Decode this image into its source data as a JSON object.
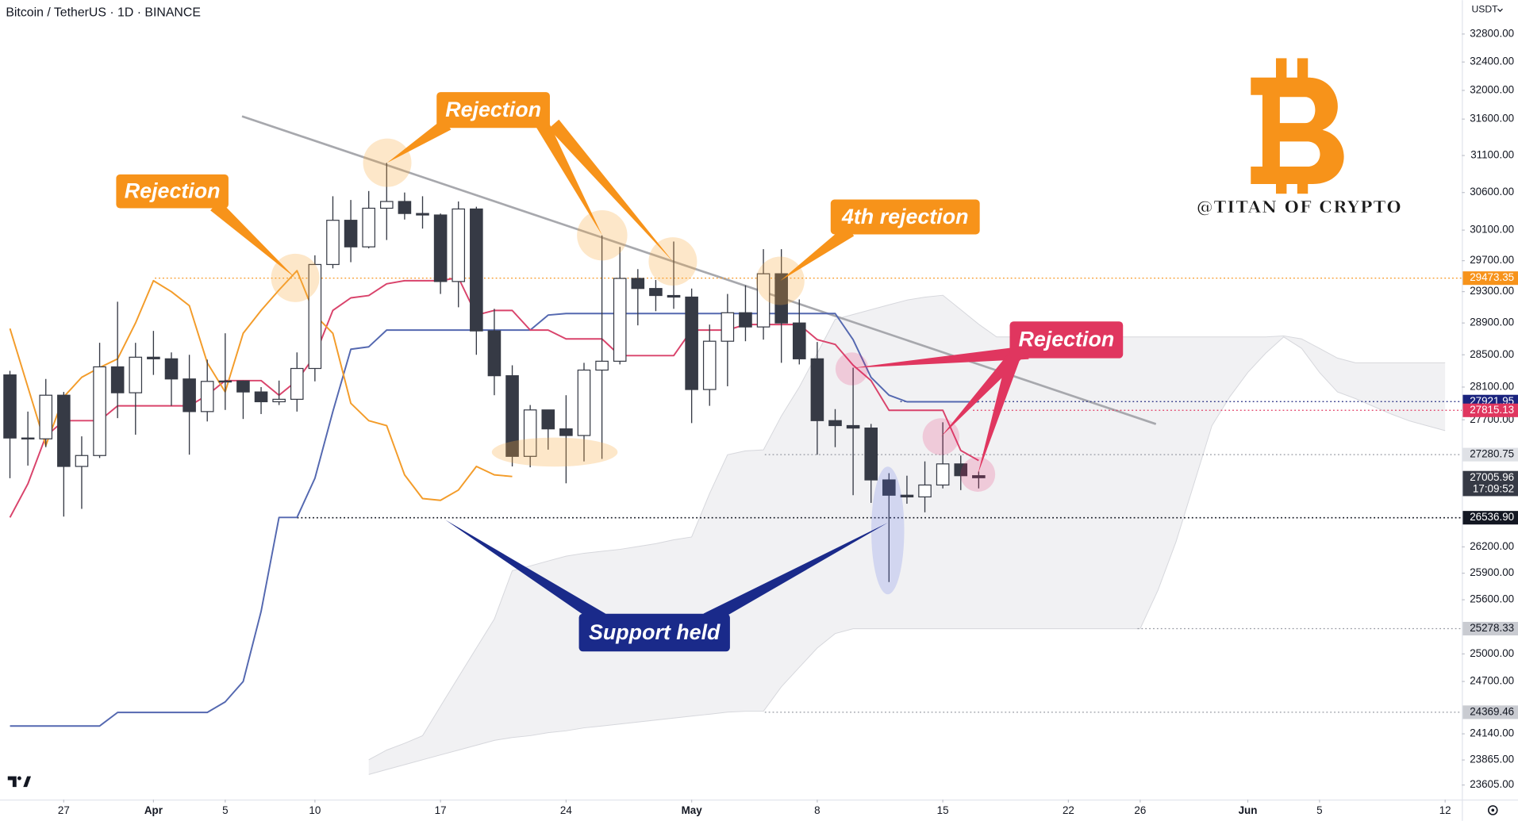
{
  "chart_data": {
    "type": "candlestick",
    "title": "Bitcoin / TetherUS · 1D · BINANCE",
    "currency": "USDT",
    "watermark": "@TITAN OF CRYPTO",
    "log_scale": true,
    "ylim": [
      23455,
      33290
    ],
    "yticks": [
      {
        "value": 32800,
        "label": "32800.00"
      },
      {
        "value": 32400,
        "label": "32400.00"
      },
      {
        "value": 32000,
        "label": "32000.00"
      },
      {
        "value": 31600,
        "label": "31600.00"
      },
      {
        "value": 31100,
        "label": "31100.00"
      },
      {
        "value": 30600,
        "label": "30600.00"
      },
      {
        "value": 30100,
        "label": "30100.00"
      },
      {
        "value": 29700,
        "label": "29700.00"
      },
      {
        "value": 29300,
        "label": "29300.00"
      },
      {
        "value": 28900,
        "label": "28900.00"
      },
      {
        "value": 28500,
        "label": "28500.00"
      },
      {
        "value": 28100,
        "label": "28100.00"
      },
      {
        "value": 27700,
        "label": "27700.00"
      },
      {
        "value": 26200,
        "label": "26200.00"
      },
      {
        "value": 25900,
        "label": "25900.00"
      },
      {
        "value": 25600,
        "label": "25600.00"
      },
      {
        "value": 25000,
        "label": "25000.00"
      },
      {
        "value": 24700,
        "label": "24700.00"
      },
      {
        "value": 24140,
        "label": "24140.00"
      },
      {
        "value": 23865,
        "label": "23865.00"
      },
      {
        "value": 23605,
        "label": "23605.00"
      }
    ],
    "categories": [
      "Mar 24",
      "Mar 25",
      "Mar 26",
      "Mar 27",
      "Mar 28",
      "Mar 29",
      "Mar 30",
      "Mar 31",
      "Apr 1",
      "Apr 2",
      "Apr 3",
      "Apr 4",
      "Apr 5",
      "Apr 6",
      "Apr 7",
      "Apr 8",
      "Apr 9",
      "Apr 10",
      "Apr 11",
      "Apr 12",
      "Apr 13",
      "Apr 14",
      "Apr 15",
      "Apr 16",
      "Apr 17",
      "Apr 18",
      "Apr 19",
      "Apr 20",
      "Apr 21",
      "Apr 22",
      "Apr 23",
      "Apr 24",
      "Apr 25",
      "Apr 26",
      "Apr 27",
      "Apr 28",
      "Apr 29",
      "Apr 30",
      "May 1",
      "May 2",
      "May 3",
      "May 4",
      "May 5",
      "May 6",
      "May 7",
      "May 8",
      "May 9",
      "May 10",
      "May 11",
      "May 12",
      "May 13",
      "May 14",
      "May 15",
      "May 16",
      "May 17",
      "May 18",
      "May 19",
      "May 20",
      "May 21",
      "May 22",
      "May 23",
      "May 24",
      "May 25",
      "May 26",
      "May 27",
      "May 28",
      "May 29",
      "May 30",
      "May 31",
      "Jun 1",
      "Jun 2",
      "Jun 3",
      "Jun 4",
      "Jun 5",
      "Jun 6",
      "Jun 7",
      "Jun 8",
      "Jun 9",
      "Jun 10",
      "Jun 11",
      "Jun 12"
    ],
    "xticks": [
      {
        "value": "Mar 27",
        "label": "27"
      },
      {
        "value": "Apr 1",
        "label": "Apr"
      },
      {
        "value": "Apr 5",
        "label": "5"
      },
      {
        "value": "Apr 10",
        "label": "10"
      },
      {
        "value": "Apr 17",
        "label": "17"
      },
      {
        "value": "Apr 24",
        "label": "24"
      },
      {
        "value": "May 1",
        "label": "May"
      },
      {
        "value": "May 8",
        "label": "8"
      },
      {
        "value": "May 15",
        "label": "15"
      },
      {
        "value": "May 22",
        "label": "22"
      },
      {
        "value": "May 26",
        "label": "26"
      },
      {
        "value": "Jun 1",
        "label": "Jun"
      },
      {
        "value": "Jun 5",
        "label": "5"
      },
      {
        "value": "Jun 12",
        "label": "12"
      }
    ],
    "up_color": "#ffffff",
    "down_color": "#363a45",
    "open": [
      28250,
      27480,
      27470,
      28000,
      27140,
      27270,
      28350,
      28030,
      28470,
      28450,
      28200,
      27800,
      28170,
      28175,
      28040,
      27920,
      27950,
      28330,
      29650,
      30230,
      29880,
      30390,
      30480,
      30320,
      30300,
      29430,
      30380,
      28800,
      28240,
      27260,
      27820,
      27590,
      27510,
      28310,
      28420,
      29470,
      29340,
      29250,
      29230,
      28070,
      28670,
      29030,
      28850,
      29530,
      28900,
      28450,
      27690,
      27630,
      27600,
      26980,
      26800,
      26780,
      26920,
      27170,
      27030,
      null,
      null,
      null,
      null,
      null,
      null,
      null,
      null,
      null,
      null,
      null,
      null,
      null,
      null,
      null,
      null,
      null,
      null,
      null,
      null,
      null,
      null,
      null,
      null,
      null,
      null
    ],
    "high": [
      28300,
      27800,
      28200,
      28040,
      27500,
      28650,
      29170,
      28650,
      28800,
      28530,
      28500,
      28440,
      28770,
      28180,
      28100,
      28180,
      28530,
      29770,
      30550,
      30500,
      30620,
      31000,
      30600,
      30550,
      30320,
      30480,
      30410,
      29080,
      28370,
      27880,
      27820,
      28000,
      28400,
      30030,
      29880,
      29590,
      29450,
      29950,
      29340,
      28880,
      29270,
      29380,
      29850,
      29850,
      29200,
      28660,
      27830,
      28340,
      27650,
      27060,
      27030,
      27200,
      27670,
      27270,
      27080,
      null,
      null,
      null,
      null,
      null,
      null,
      null,
      null,
      null,
      null,
      null,
      null,
      null,
      null,
      null,
      null,
      null,
      null,
      null,
      null,
      null,
      null,
      null,
      null,
      null,
      null
    ],
    "low": [
      27000,
      27150,
      27370,
      26550,
      26640,
      27240,
      27720,
      27520,
      28250,
      27870,
      27280,
      27680,
      27820,
      27710,
      27770,
      27880,
      27800,
      28170,
      29600,
      29680,
      29860,
      29970,
      30240,
      30120,
      29270,
      29100,
      28500,
      28000,
      27140,
      27130,
      27340,
      26940,
      27200,
      27230,
      28380,
      28870,
      29050,
      29080,
      27660,
      27870,
      28110,
      28670,
      28690,
      28400,
      28380,
      27280,
      27370,
      26800,
      26710,
      25800,
      26700,
      26600,
      26880,
      26860,
      26880,
      null,
      null,
      null,
      null,
      null,
      null,
      null,
      null,
      null,
      null,
      null,
      null,
      null,
      null,
      null,
      null,
      null,
      null,
      null,
      null,
      null,
      null,
      null,
      null,
      null,
      null
    ],
    "close": [
      27480,
      27470,
      28000,
      27140,
      27270,
      28350,
      28030,
      28470,
      28450,
      28200,
      27800,
      28170,
      28175,
      28040,
      27920,
      27950,
      28330,
      29650,
      30230,
      29880,
      30390,
      30480,
      30320,
      30300,
      29430,
      30380,
      28800,
      28240,
      27260,
      27820,
      27590,
      27510,
      28310,
      28420,
      29470,
      29340,
      29250,
      29230,
      28070,
      28670,
      29030,
      28850,
      29530,
      28900,
      28450,
      27690,
      27630,
      27600,
      26980,
      26800,
      26780,
      26920,
      27170,
      27030,
      27005.96,
      null,
      null,
      null,
      null,
      null,
      null,
      null,
      null,
      null,
      null,
      null,
      null,
      null,
      null,
      null,
      null,
      null,
      null,
      null,
      null,
      null,
      null,
      null,
      null,
      null,
      null
    ],
    "series": [
      {
        "color": "#5468b0",
        "values": [
          24223,
          24223,
          24223,
          24223,
          24223,
          24223,
          24367,
          24367,
          24367,
          24367,
          24367,
          24367,
          24480,
          24700,
          25470,
          26540,
          26540,
          27000,
          27800,
          28570,
          28600,
          28810,
          28810,
          28810,
          28810,
          28810,
          28810,
          28810,
          28810,
          28810,
          29000,
          29020,
          29020,
          29020,
          29020,
          29020,
          29020,
          29020,
          29020,
          29020,
          29020,
          29020,
          29020,
          29020,
          29020,
          29020,
          29020,
          28690,
          28220,
          28000,
          27920,
          27920,
          27920,
          27920,
          27920,
          null,
          null,
          null,
          null,
          null,
          null,
          null,
          null,
          null,
          null,
          null,
          null,
          null,
          null,
          null,
          null,
          null,
          null,
          null,
          null,
          null,
          null,
          null,
          null,
          null,
          null
        ]
      },
      {
        "color": "#d9436b",
        "values": [
          26540,
          26934,
          27500,
          27690,
          27690,
          27690,
          27870,
          27870,
          27870,
          27870,
          27870,
          28000,
          28180,
          28180,
          28180,
          28000,
          28180,
          28490,
          29060,
          29220,
          29250,
          29400,
          29440,
          29440,
          29440,
          29480,
          29000,
          29060,
          29060,
          28810,
          28810,
          28700,
          28700,
          28700,
          28490,
          28490,
          28490,
          28490,
          28810,
          28810,
          28810,
          28880,
          28880,
          28880,
          28880,
          28690,
          28630,
          28370,
          28180,
          27815,
          27815,
          27815,
          27815,
          27330,
          27210,
          null,
          null,
          null,
          null,
          null,
          null,
          null,
          null,
          null,
          null,
          null,
          null,
          null,
          null,
          null,
          null,
          null,
          null,
          null,
          null,
          null,
          null,
          null,
          null,
          null,
          null
        ]
      },
      {
        "color": "#f39c2a",
        "values": [
          28830,
          28100,
          27390,
          27980,
          28220,
          28340,
          28450,
          28900,
          29440,
          29300,
          29120,
          28400,
          28040,
          28770,
          29060,
          29320,
          29570,
          29000,
          28770,
          27900,
          27690,
          27630,
          27040,
          26760,
          26740,
          26860,
          27140,
          27040,
          27020,
          null,
          null,
          null,
          null,
          null,
          null,
          null,
          null,
          null,
          null,
          null,
          null,
          null,
          null,
          null,
          null,
          null,
          null,
          null,
          null,
          null,
          null,
          null,
          null,
          null,
          null,
          null,
          null,
          null,
          null,
          null,
          null,
          null,
          null,
          null,
          null,
          null,
          null,
          null,
          null,
          null,
          null,
          null,
          null,
          null,
          null,
          null,
          null,
          null,
          null,
          null,
          null
        ]
      }
    ],
    "cloud": {
      "color": "#e9e9ec",
      "upper": [
        null,
        null,
        null,
        null,
        null,
        null,
        null,
        null,
        null,
        null,
        null,
        null,
        null,
        null,
        null,
        null,
        null,
        null,
        null,
        null,
        23867,
        23969,
        24040,
        24121,
        24433,
        24747,
        25065,
        25385,
        25928,
        25983,
        26039,
        26094,
        26127,
        26149,
        26171,
        26204,
        26237,
        26282,
        26314,
        26821,
        27280,
        27326,
        27337,
        27746,
        28100,
        28520,
        28946,
        29008,
        29069,
        29131,
        29192,
        29229,
        29254,
        29069,
        28885,
        28724,
        28724,
        28724,
        28724,
        28724,
        28724,
        28724,
        28724,
        28724,
        28724,
        28724,
        28724,
        28724,
        28724,
        28724,
        28724,
        28737,
        28700,
        28580,
        28460,
        28400,
        28400,
        28400,
        28400,
        28400,
        28400
      ],
      "lower": [
        null,
        null,
        null,
        null,
        null,
        null,
        null,
        null,
        null,
        null,
        null,
        null,
        null,
        null,
        null,
        null,
        null,
        null,
        null,
        null,
        23714,
        23765,
        23816,
        23867,
        23918,
        23969,
        24020,
        24070,
        24101,
        24121,
        24152,
        24172,
        24203,
        24223,
        24244,
        24265,
        24286,
        24307,
        24328,
        24349,
        24370,
        24380,
        24380,
        24642,
        24853,
        25065,
        25224,
        25277,
        25277,
        25277,
        25277,
        25277,
        25277,
        25277,
        25277,
        25277,
        25277,
        25277,
        25277,
        25277,
        25277,
        25277,
        25277,
        25277,
        25710,
        26260,
        26934,
        27628,
        27982,
        28280,
        28520,
        28724,
        28580,
        28280,
        28041,
        27958,
        27864,
        27770,
        27687,
        27628,
        27569
      ]
    },
    "price_lines": [
      {
        "value": 29473.35,
        "label": "29473.35",
        "color": "#f7931a",
        "text_color": "#ffffff"
      },
      {
        "value": 27921.95,
        "label": "27921.95",
        "color": "#1a237e",
        "text_color": "#ffffff"
      },
      {
        "value": 27815.13,
        "label": "27815.13",
        "color": "#e0365f",
        "text_color": "#ffffff"
      },
      {
        "value": 27280.75,
        "label": "27280.75",
        "color": "#dfe1e6",
        "text_color": "#131722"
      },
      {
        "value": 27005.96,
        "label": "27005.96",
        "countdown": "17:09:52",
        "color": "#363a45",
        "text_color": "#ffffff"
      },
      {
        "value": 26536.9,
        "label": "26536.90",
        "color": "#131722",
        "text_color": "#ffffff"
      },
      {
        "value": 25278.33,
        "label": "25278.33",
        "color": "#c9cbd1",
        "text_color": "#131722"
      },
      {
        "value": 24369.46,
        "label": "24369.46",
        "color": "#c9cbd1",
        "text_color": "#131722"
      }
    ],
    "annotations": [
      {
        "text": "Rejection",
        "color": "#f7931a"
      },
      {
        "text": "Rejection",
        "color": "#f7931a"
      },
      {
        "text": "4th rejection",
        "color": "#f7931a"
      },
      {
        "text": "Rejection",
        "color": "#e0365f"
      },
      {
        "text": "Support held",
        "color": "#1a2a8a"
      }
    ]
  }
}
